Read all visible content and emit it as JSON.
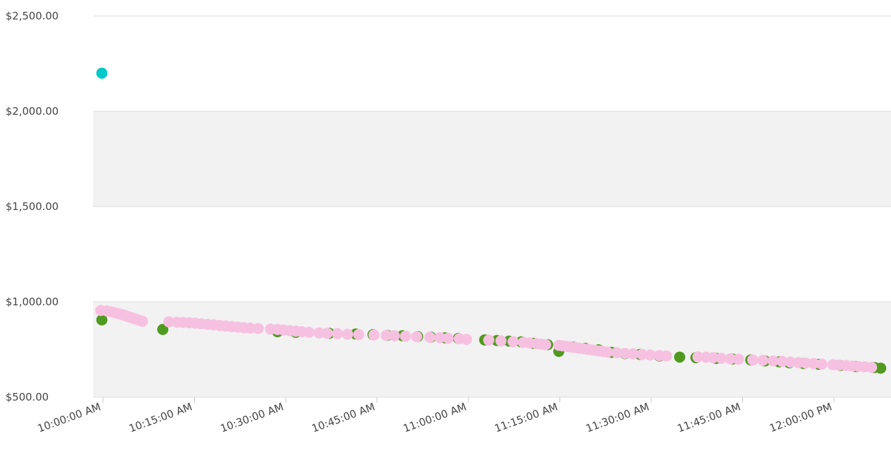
{
  "chart_data": {
    "type": "scatter",
    "title": "",
    "xlabel": "",
    "ylabel": "",
    "x_is_time": true,
    "xlim": [
      "09:59:00",
      "12:08:30"
    ],
    "ylim": [
      500,
      2500
    ],
    "y_ticks": [
      500,
      1000,
      1500,
      2000,
      2500
    ],
    "y_tick_labels": [
      "$500.00",
      "$1,000.00",
      "$1,500.00",
      "$2,000.00",
      "$2,500.00"
    ],
    "x_ticks": [
      "10:00:00",
      "10:15:00",
      "10:30:00",
      "10:45:00",
      "11:00:00",
      "11:15:00",
      "11:30:00",
      "11:45:00",
      "12:00:00"
    ],
    "x_tick_labels": [
      "10:00:00 AM",
      "10:15:00 AM",
      "10:30:00 AM",
      "10:45:00 AM",
      "11:00:00 AM",
      "11:15:00 AM",
      "11:30:00 AM",
      "11:45:00 AM",
      "12:00:00 PM"
    ],
    "alternating_bands": true,
    "legend": "none",
    "series": [
      {
        "color": "#4f9a1f",
        "points": [
          [
            "09:59:50",
            905
          ],
          [
            "10:09:50",
            855
          ],
          [
            "10:28:40",
            843
          ],
          [
            "10:31:40",
            840
          ],
          [
            "10:37:10",
            835
          ],
          [
            "10:41:30",
            831
          ],
          [
            "10:44:20",
            828
          ],
          [
            "10:46:40",
            824
          ],
          [
            "10:49:10",
            822
          ],
          [
            "10:51:40",
            818
          ],
          [
            "10:53:50",
            815
          ],
          [
            "10:56:10",
            811
          ],
          [
            "10:58:20",
            808
          ],
          [
            "11:02:40",
            800
          ],
          [
            "11:04:40",
            797
          ],
          [
            "11:06:40",
            794
          ],
          [
            "11:08:40",
            790
          ],
          [
            "11:10:40",
            782
          ],
          [
            "11:13:00",
            775
          ],
          [
            "11:14:50",
            740
          ],
          [
            "11:17:10",
            763
          ],
          [
            "11:19:10",
            756
          ],
          [
            "11:21:20",
            748
          ],
          [
            "11:23:30",
            735
          ],
          [
            "11:25:40",
            728
          ],
          [
            "11:28:10",
            724
          ],
          [
            "11:31:20",
            716
          ],
          [
            "11:34:40",
            710
          ],
          [
            "11:37:20",
            707
          ],
          [
            "11:40:40",
            703
          ],
          [
            "11:43:20",
            700
          ],
          [
            "11:46:20",
            695
          ],
          [
            "11:48:40",
            690
          ],
          [
            "11:51:00",
            685
          ],
          [
            "11:52:40",
            680
          ],
          [
            "11:55:00",
            676
          ],
          [
            "11:57:30",
            672
          ],
          [
            "12:01:00",
            666
          ],
          [
            "12:03:40",
            660
          ],
          [
            "12:06:40",
            655
          ],
          [
            "12:07:40",
            652
          ]
        ]
      },
      {
        "color": "#f6c1e1",
        "points": [
          [
            "09:59:40",
            955
          ],
          [
            "10:00:40",
            952
          ],
          [
            "10:01:20",
            948
          ],
          [
            "10:01:50",
            944
          ],
          [
            "10:02:20",
            940
          ],
          [
            "10:02:50",
            936
          ],
          [
            "10:03:20",
            931
          ],
          [
            "10:03:50",
            926
          ],
          [
            "10:04:20",
            920
          ],
          [
            "10:04:50",
            915
          ],
          [
            "10:05:20",
            910
          ],
          [
            "10:05:50",
            905
          ],
          [
            "10:06:30",
            898
          ],
          [
            "10:10:50",
            895
          ],
          [
            "10:12:10",
            893
          ],
          [
            "10:13:10",
            892
          ],
          [
            "10:14:10",
            890
          ],
          [
            "10:15:10",
            888
          ],
          [
            "10:16:10",
            885
          ],
          [
            "10:17:10",
            882
          ],
          [
            "10:18:10",
            879
          ],
          [
            "10:19:10",
            876
          ],
          [
            "10:20:10",
            873
          ],
          [
            "10:21:10",
            870
          ],
          [
            "10:22:10",
            867
          ],
          [
            "10:23:10",
            864
          ],
          [
            "10:24:10",
            862
          ],
          [
            "10:25:30",
            860
          ],
          [
            "10:27:30",
            857
          ],
          [
            "10:28:40",
            855
          ],
          [
            "10:29:40",
            852
          ],
          [
            "10:30:40",
            849
          ],
          [
            "10:31:40",
            846
          ],
          [
            "10:32:40",
            843
          ],
          [
            "10:33:50",
            840
          ],
          [
            "10:35:30",
            837
          ],
          [
            "10:36:50",
            835
          ],
          [
            "10:38:30",
            833
          ],
          [
            "10:40:10",
            830
          ],
          [
            "10:42:00",
            828
          ],
          [
            "10:44:30",
            826
          ],
          [
            "10:46:30",
            824
          ],
          [
            "10:47:50",
            822
          ],
          [
            "10:49:40",
            820
          ],
          [
            "10:51:30",
            817
          ],
          [
            "10:53:40",
            814
          ],
          [
            "10:55:20",
            812
          ],
          [
            "10:56:40",
            809
          ],
          [
            "10:58:30",
            806
          ],
          [
            "10:59:40",
            803
          ],
          [
            "11:03:20",
            799
          ],
          [
            "11:05:20",
            795
          ],
          [
            "11:07:20",
            791
          ],
          [
            "11:09:00",
            787
          ],
          [
            "11:10:00",
            784
          ],
          [
            "11:11:10",
            780
          ],
          [
            "11:12:00",
            778
          ],
          [
            "11:12:40",
            775
          ],
          [
            "11:14:50",
            772
          ],
          [
            "11:15:30",
            769
          ],
          [
            "11:16:10",
            766
          ],
          [
            "11:16:50",
            763
          ],
          [
            "11:17:30",
            760
          ],
          [
            "11:18:10",
            757
          ],
          [
            "11:18:50",
            754
          ],
          [
            "11:19:30",
            751
          ],
          [
            "11:20:10",
            748
          ],
          [
            "11:20:50",
            745
          ],
          [
            "11:21:30",
            742
          ],
          [
            "11:22:10",
            739
          ],
          [
            "11:22:50",
            736
          ],
          [
            "11:24:20",
            733
          ],
          [
            "11:25:40",
            730
          ],
          [
            "11:27:00",
            727
          ],
          [
            "11:28:30",
            724
          ],
          [
            "11:29:50",
            721
          ],
          [
            "11:31:20",
            718
          ],
          [
            "11:32:30",
            716
          ],
          [
            "11:37:40",
            711
          ],
          [
            "11:39:00",
            709
          ],
          [
            "11:40:10",
            707
          ],
          [
            "11:41:30",
            704
          ],
          [
            "11:43:00",
            701
          ],
          [
            "11:44:20",
            699
          ],
          [
            "11:46:40",
            695
          ],
          [
            "11:48:20",
            693
          ],
          [
            "11:50:00",
            690
          ],
          [
            "11:51:30",
            687
          ],
          [
            "11:52:50",
            684
          ],
          [
            "11:54:10",
            681
          ],
          [
            "11:55:20",
            679
          ],
          [
            "11:56:40",
            676
          ],
          [
            "11:58:00",
            673
          ],
          [
            "11:59:50",
            670
          ],
          [
            "12:00:50",
            668
          ],
          [
            "12:02:00",
            666
          ],
          [
            "12:03:00",
            663
          ],
          [
            "12:04:00",
            661
          ],
          [
            "12:05:00",
            659
          ],
          [
            "12:06:10",
            656
          ]
        ]
      },
      {
        "color": "#00c9c9",
        "points": [
          [
            "09:59:50",
            2200
          ]
        ]
      }
    ]
  }
}
